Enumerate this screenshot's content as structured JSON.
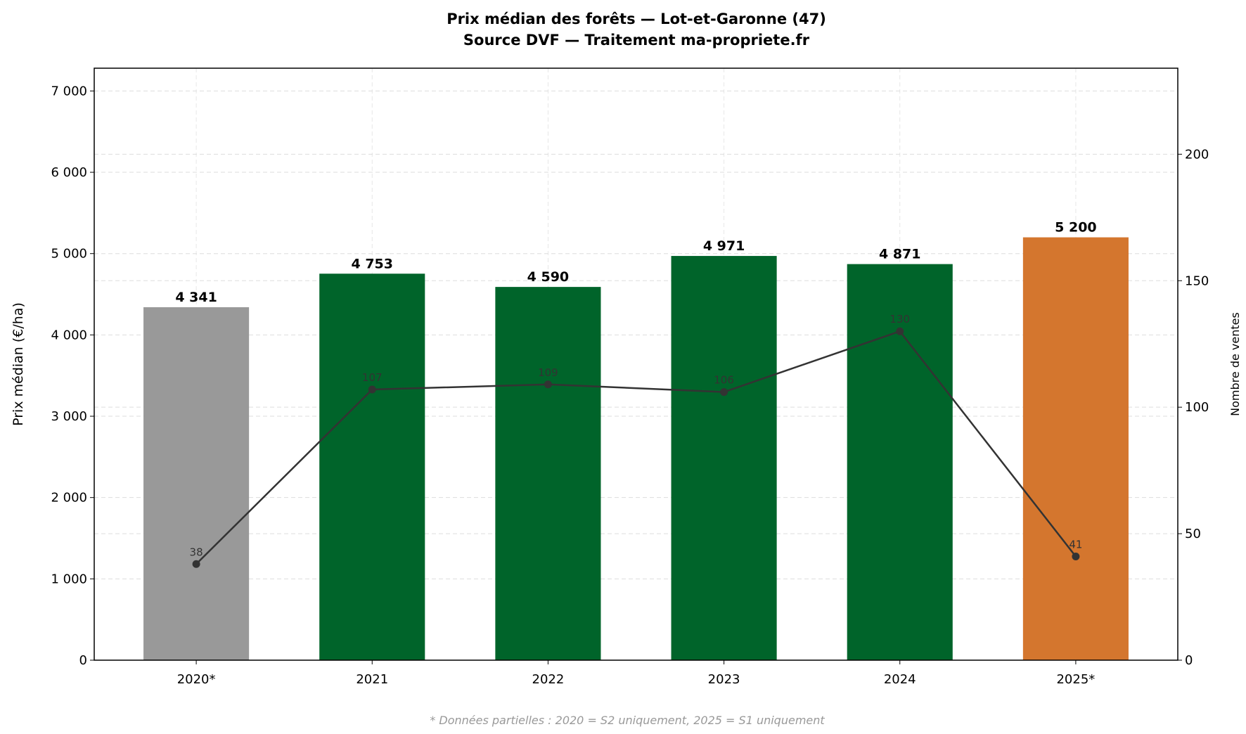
{
  "chart_data": {
    "type": "bar+line",
    "title": "Prix médian des forêts — Lot-et-Garonne (47)",
    "subtitle": "Source DVF — Traitement ma-propriete.fr",
    "categories": [
      "2020*",
      "2021",
      "2022",
      "2023",
      "2024",
      "2025*"
    ],
    "bar_series": {
      "values": [
        4341,
        4753,
        4590,
        4971,
        4871,
        5200
      ],
      "labels": [
        "4 341",
        "4 753",
        "4 590",
        "4 971",
        "4 871",
        "5 200"
      ],
      "colors": [
        "#999999",
        "#00642a",
        "#00642a",
        "#00642a",
        "#00642a",
        "#d4762e"
      ]
    },
    "line_series": {
      "values": [
        38,
        107,
        109,
        106,
        130,
        41
      ],
      "color": "#333333"
    },
    "ylabel": "Prix médian (€/ha)",
    "y2label": "Nombre de ventes",
    "ylim": [
      0,
      7280
    ],
    "y2lim": [
      0,
      234
    ],
    "yticks": [
      0,
      1000,
      2000,
      3000,
      4000,
      5000,
      6000,
      7000
    ],
    "ytick_labels": [
      "0",
      "1 000",
      "2 000",
      "3 000",
      "4 000",
      "5 000",
      "6 000",
      "7 000"
    ],
    "y2ticks": [
      0,
      50,
      100,
      150,
      200
    ],
    "grid": true,
    "footnote": "* Données partielles : 2020 = S2 uniquement, 2025 = S1 uniquement"
  }
}
